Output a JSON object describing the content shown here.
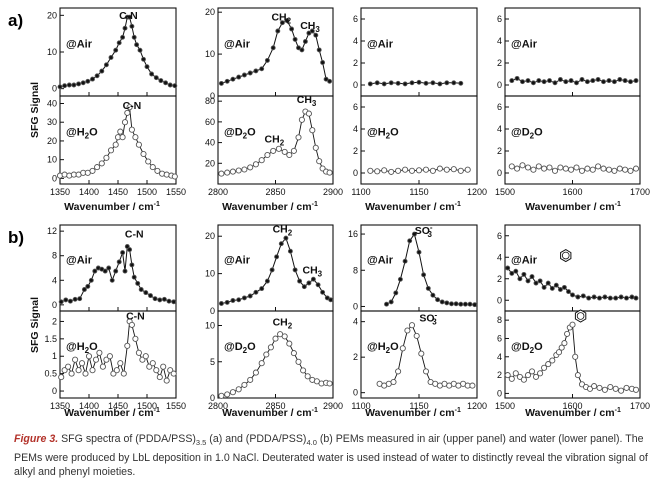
{
  "figure": {
    "panel_a_letter": "a)",
    "panel_b_letter": "b)",
    "ylabel": "SFG Signal",
    "xlabel_text": "Wavenumber / cm",
    "xlabel_sup": "-1"
  },
  "caption": {
    "fig_label": "Figure 3.",
    "text_1": " SFG spectra of (PDDA/PSS)",
    "sub_1": "3.5",
    "text_2": " (a) and (PDDA/PSS)",
    "sub_2": "4.0",
    "text_3": " (b) PEMs measured in air (upper panel) and water (lower panel). The PEMs were produced by LbL deposition in 1.0 NaCl. Deuterated water is used instead of water to distinctly reveal the vibration signal of alkyl and phenyl moieties."
  },
  "chart_data": [
    {
      "id": "a-air-CN",
      "type": "line",
      "env": "@Air",
      "marker": "filled",
      "xlim": [
        1350,
        1550
      ],
      "ylim": [
        -2,
        22
      ],
      "xticks": [
        "1350",
        "1400",
        "1450",
        "1500",
        "1550"
      ],
      "yticks": [
        0,
        10,
        20
      ],
      "peaks": [
        {
          "text": "C-N",
          "x": 1468,
          "y": 19
        }
      ],
      "x": [
        1350,
        1358,
        1366,
        1374,
        1382,
        1390,
        1398,
        1406,
        1414,
        1422,
        1430,
        1438,
        1446,
        1452,
        1458,
        1462,
        1466,
        1470,
        1474,
        1478,
        1482,
        1488,
        1494,
        1500,
        1508,
        1516,
        1524,
        1532,
        1540,
        1548
      ],
      "y": [
        0.5,
        0.8,
        1,
        1,
        1.3,
        1.6,
        2,
        2.6,
        3.5,
        4.8,
        6.5,
        8.5,
        10.5,
        12.5,
        14,
        16.5,
        19.5,
        19.5,
        17,
        14,
        12,
        10.5,
        8,
        6,
        4,
        3,
        2.2,
        1.6,
        1,
        0.8
      ]
    },
    {
      "id": "a-air-CH",
      "type": "line",
      "env": "@Air",
      "marker": "filled",
      "xlim": [
        2800,
        2900
      ],
      "ylim": [
        0,
        21
      ],
      "xticks": [
        "2800",
        "2850",
        "2900"
      ],
      "yticks": [
        0,
        10,
        20
      ],
      "peaks": [
        {
          "text": "CH",
          "sub": "2",
          "x": 2855,
          "y": 18
        },
        {
          "text": "CH",
          "sub": "3",
          "x": 2880,
          "y": 16
        }
      ],
      "x": [
        2803,
        2808,
        2813,
        2818,
        2823,
        2828,
        2833,
        2838,
        2843,
        2848,
        2852,
        2856,
        2860,
        2864,
        2867,
        2870,
        2873,
        2876,
        2879,
        2882,
        2885,
        2888,
        2891,
        2894,
        2897
      ],
      "y": [
        3,
        3.5,
        4,
        4.5,
        5,
        5.5,
        6,
        6.5,
        8.5,
        11.5,
        15.5,
        17.5,
        18,
        16,
        13.5,
        11.5,
        11,
        13,
        15,
        15.5,
        14.5,
        11,
        8,
        4,
        3.5
      ]
    },
    {
      "id": "a-air-SO3",
      "type": "line",
      "env": "@Air",
      "marker": "filled",
      "xlim": [
        1100,
        1200
      ],
      "ylim": [
        -1,
        7
      ],
      "xticks": [
        "1100",
        "1150",
        "1200"
      ],
      "yticks": [
        0,
        2,
        4,
        6
      ],
      "peaks": [],
      "x": [
        1108,
        1114,
        1120,
        1126,
        1132,
        1138,
        1144,
        1150,
        1156,
        1162,
        1168,
        1174,
        1180,
        1186
      ],
      "y": [
        0.1,
        0.2,
        0.1,
        0.2,
        0.15,
        0.1,
        0.2,
        0.25,
        0.15,
        0.2,
        0.1,
        0.2,
        0.2,
        0.15
      ]
    },
    {
      "id": "a-air-Ph",
      "type": "line",
      "env": "@Air",
      "marker": "filled",
      "xlim": [
        1500,
        1700
      ],
      "ylim": [
        -1,
        7
      ],
      "xticks": [
        "1500",
        "1600",
        "1700"
      ],
      "yticks": [
        0,
        2,
        4,
        6
      ],
      "peaks": [],
      "x": [
        1510,
        1518,
        1526,
        1534,
        1542,
        1550,
        1558,
        1566,
        1574,
        1582,
        1590,
        1598,
        1606,
        1614,
        1622,
        1630,
        1638,
        1646,
        1654,
        1662,
        1670,
        1678,
        1686,
        1694
      ],
      "y": [
        0.4,
        0.6,
        0.3,
        0.4,
        0.2,
        0.4,
        0.3,
        0.4,
        0.2,
        0.5,
        0.3,
        0.4,
        0.2,
        0.5,
        0.3,
        0.4,
        0.5,
        0.3,
        0.4,
        0.3,
        0.5,
        0.4,
        0.3,
        0.4
      ]
    },
    {
      "id": "a-water-CN",
      "type": "line",
      "env": "@H2O",
      "marker": "open",
      "xlim": [
        1350,
        1550
      ],
      "ylim": [
        -3,
        44
      ],
      "xticks": [
        "1350",
        "1400",
        "1450",
        "1500",
        "1550"
      ],
      "yticks": [
        0,
        10,
        20,
        30,
        40
      ],
      "peaks": [
        {
          "text": "C-N",
          "x": 1474,
          "y": 37
        }
      ],
      "x": [
        1350,
        1358,
        1366,
        1374,
        1382,
        1390,
        1398,
        1406,
        1414,
        1422,
        1430,
        1438,
        1446,
        1450,
        1454,
        1458,
        1462,
        1466,
        1470,
        1474,
        1480,
        1486,
        1494,
        1502,
        1510,
        1518,
        1526,
        1534,
        1542,
        1548
      ],
      "y": [
        1.5,
        2,
        1.5,
        2,
        2,
        3,
        3,
        4,
        6,
        8,
        11,
        15,
        18,
        22,
        25,
        22,
        30,
        35,
        38,
        26,
        22,
        18,
        13,
        9,
        6,
        4,
        2.5,
        2,
        1.5,
        1
      ]
    },
    {
      "id": "a-water-CH",
      "type": "line",
      "env": "@D2O",
      "marker": "open",
      "xlim": [
        2800,
        2900
      ],
      "ylim": [
        0,
        85
      ],
      "xticks": [
        "2800",
        "2850",
        "2900"
      ],
      "yticks": [
        20,
        40,
        60,
        80
      ],
      "peaks": [
        {
          "text": "CH",
          "sub": "2",
          "x": 2849,
          "y": 40
        },
        {
          "text": "CH",
          "sub": "3",
          "x": 2877,
          "y": 78
        }
      ],
      "x": [
        2803,
        2808,
        2813,
        2818,
        2823,
        2828,
        2833,
        2838,
        2843,
        2848,
        2853,
        2858,
        2862,
        2866,
        2870,
        2873,
        2876,
        2879,
        2882,
        2885,
        2888,
        2891,
        2894,
        2897
      ],
      "y": [
        10,
        11,
        12,
        13,
        14,
        16,
        19,
        23,
        28,
        32,
        34,
        31,
        28,
        32,
        45,
        62,
        70,
        68,
        52,
        35,
        22,
        15,
        12,
        11
      ]
    },
    {
      "id": "a-water-SO3",
      "type": "line",
      "env": "@H2O",
      "marker": "open",
      "xlim": [
        1100,
        1200
      ],
      "ylim": [
        -1,
        7
      ],
      "xticks": [
        "1100",
        "1150",
        "1200"
      ],
      "yticks": [
        0,
        2,
        4,
        6
      ],
      "peaks": [],
      "x": [
        1108,
        1114,
        1120,
        1126,
        1132,
        1138,
        1144,
        1150,
        1156,
        1162,
        1168,
        1174,
        1180,
        1186,
        1192
      ],
      "y": [
        0.2,
        0.15,
        0.25,
        0.1,
        0.2,
        0.3,
        0.2,
        0.25,
        0.3,
        0.2,
        0.4,
        0.3,
        0.35,
        0.2,
        0.3
      ]
    },
    {
      "id": "a-water-Ph",
      "type": "line",
      "env": "@D2O",
      "marker": "open",
      "xlim": [
        1500,
        1700
      ],
      "ylim": [
        -1,
        7
      ],
      "xticks": [
        "1500",
        "1600",
        "1700"
      ],
      "yticks": [
        0,
        2,
        4,
        6
      ],
      "peaks": [],
      "x": [
        1510,
        1518,
        1526,
        1534,
        1542,
        1550,
        1558,
        1566,
        1574,
        1582,
        1590,
        1598,
        1606,
        1614,
        1622,
        1630,
        1638,
        1646,
        1654,
        1662,
        1670,
        1678,
        1686,
        1694
      ],
      "y": [
        0.6,
        0.4,
        0.7,
        0.5,
        0.3,
        0.6,
        0.4,
        0.5,
        0.2,
        0.5,
        0.4,
        0.3,
        0.5,
        0.2,
        0.4,
        0.3,
        0.6,
        0.4,
        0.3,
        0.2,
        0.4,
        0.3,
        0.2,
        0.4
      ]
    },
    {
      "id": "b-air-CN",
      "type": "line",
      "env": "@Air",
      "marker": "filled",
      "xlim": [
        1350,
        1550
      ],
      "ylim": [
        -1,
        13
      ],
      "xticks": [
        "1350",
        "1400",
        "1450",
        "1500",
        "1550"
      ],
      "yticks": [
        0,
        4,
        8,
        12
      ],
      "peaks": [
        {
          "text": "C-N",
          "x": 1478,
          "y": 11
        }
      ],
      "x": [
        1352,
        1360,
        1368,
        1376,
        1384,
        1392,
        1398,
        1404,
        1410,
        1416,
        1422,
        1428,
        1434,
        1440,
        1446,
        1452,
        1458,
        1462,
        1466,
        1470,
        1474,
        1478,
        1484,
        1490,
        1498,
        1506,
        1514,
        1522,
        1530,
        1538,
        1546
      ],
      "y": [
        0.5,
        0.8,
        0.6,
        0.9,
        1,
        2.5,
        3,
        4,
        5.5,
        6,
        5.8,
        5.5,
        6,
        4,
        5.5,
        7,
        8.5,
        5.5,
        9.5,
        9,
        6.5,
        4.5,
        3.5,
        2.5,
        2,
        1.5,
        1,
        0.8,
        0.9,
        0.6,
        0.5
      ]
    },
    {
      "id": "b-air-CH",
      "type": "line",
      "env": "@Air",
      "marker": "filled",
      "xlim": [
        2800,
        2900
      ],
      "ylim": [
        0,
        23
      ],
      "xticks": [
        "2800",
        "2850",
        "2900"
      ],
      "yticks": [
        0,
        10,
        20
      ],
      "peaks": [
        {
          "text": "CH",
          "sub": "2",
          "x": 2856,
          "y": 21
        },
        {
          "text": "CH",
          "sub": "3",
          "x": 2882,
          "y": 10
        }
      ],
      "x": [
        2803,
        2808,
        2813,
        2818,
        2823,
        2828,
        2833,
        2838,
        2843,
        2847,
        2851,
        2855,
        2859,
        2863,
        2867,
        2871,
        2875,
        2879,
        2883,
        2887,
        2891,
        2895,
        2898
      ],
      "y": [
        2,
        2.3,
        2.8,
        3,
        3.5,
        4,
        5,
        6,
        8,
        11,
        14.5,
        18,
        19.5,
        16,
        11,
        8,
        6.5,
        7.5,
        8.5,
        7,
        5,
        3.5,
        3
      ]
    },
    {
      "id": "b-air-SO3",
      "type": "line",
      "env": "@Air",
      "marker": "filled",
      "xlim": [
        1100,
        1200
      ],
      "ylim": [
        -1,
        18
      ],
      "xticks": [
        "1100",
        "1150",
        "1200"
      ],
      "yticks": [
        0,
        8,
        16
      ],
      "peaks": [
        {
          "text": "SO",
          "sub": "3",
          "sup": "-",
          "x": 1154,
          "y": 16
        }
      ],
      "x": [
        1122,
        1126,
        1130,
        1134,
        1138,
        1142,
        1146,
        1150,
        1154,
        1158,
        1162,
        1166,
        1170,
        1174,
        1178,
        1182,
        1186,
        1190,
        1194,
        1198
      ],
      "y": [
        0.5,
        1,
        3,
        6,
        10,
        14.5,
        16,
        12,
        7,
        4,
        2.5,
        1.5,
        1,
        0.8,
        0.6,
        0.6,
        0.5,
        0.5,
        0.5,
        0.4
      ]
    },
    {
      "id": "b-air-Ph",
      "type": "line",
      "env": "@Air",
      "marker": "filled",
      "xlim": [
        1500,
        1700
      ],
      "ylim": [
        -1,
        7
      ],
      "xticks": [
        "1500",
        "1600",
        "1700"
      ],
      "yticks": [
        0,
        2,
        4,
        6
      ],
      "peaks": [
        {
          "icon": "benzene-ring",
          "x": 1590,
          "y": 3.6
        }
      ],
      "x": [
        1504,
        1510,
        1516,
        1522,
        1528,
        1534,
        1540,
        1546,
        1552,
        1558,
        1564,
        1570,
        1576,
        1582,
        1588,
        1594,
        1600,
        1608,
        1616,
        1624,
        1632,
        1640,
        1648,
        1656,
        1664,
        1672,
        1680,
        1688,
        1694
      ],
      "y": [
        3,
        2.5,
        2.7,
        2,
        2.4,
        1.8,
        2.2,
        1.6,
        1.8,
        1.2,
        1.6,
        1.1,
        1.4,
        1,
        1.2,
        0.8,
        0.5,
        0.3,
        0.4,
        0.2,
        0.3,
        0.2,
        0.3,
        0.2,
        0.2,
        0.3,
        0.2,
        0.3,
        0.2
      ]
    },
    {
      "id": "b-water-CN",
      "type": "line",
      "env": "@H2O",
      "marker": "open",
      "xlim": [
        1350,
        1550
      ],
      "ylim": [
        -0.2,
        2.3
      ],
      "xticks": [
        "1350",
        "1400",
        "1450",
        "1500",
        "1550"
      ],
      "yticks": [
        0,
        0.5,
        1,
        1.5,
        2
      ],
      "peaks": [
        {
          "text": "C-N",
          "x": 1480,
          "y": 2.05
        }
      ],
      "x": [
        1352,
        1358,
        1364,
        1370,
        1376,
        1382,
        1388,
        1394,
        1400,
        1406,
        1412,
        1418,
        1424,
        1430,
        1436,
        1442,
        1448,
        1454,
        1460,
        1466,
        1470,
        1474,
        1480,
        1486,
        1492,
        1498,
        1504,
        1510,
        1516,
        1522,
        1528,
        1534,
        1540,
        1546
      ],
      "y": [
        0.4,
        0.6,
        0.7,
        0.5,
        0.9,
        0.6,
        0.8,
        0.5,
        1,
        0.6,
        0.9,
        1.1,
        0.7,
        0.9,
        1,
        0.5,
        0.6,
        0.8,
        0.5,
        1.3,
        2,
        1.9,
        1.5,
        1.1,
        0.9,
        1,
        0.7,
        0.8,
        0.6,
        0.4,
        0.7,
        0.3,
        0.6,
        0.5
      ]
    },
    {
      "id": "b-water-CH",
      "type": "line",
      "env": "@D2O",
      "marker": "open",
      "xlim": [
        2800,
        2900
      ],
      "ylim": [
        0,
        12
      ],
      "xticks": [
        "2800",
        "2850",
        "2900"
      ],
      "yticks": [
        0,
        5,
        10
      ],
      "peaks": [
        {
          "text": "CH",
          "sub": "2",
          "x": 2856,
          "y": 10
        }
      ],
      "x": [
        2803,
        2808,
        2813,
        2818,
        2823,
        2828,
        2833,
        2838,
        2842,
        2846,
        2850,
        2854,
        2858,
        2862,
        2866,
        2870,
        2874,
        2878,
        2882,
        2886,
        2890,
        2894,
        2897
      ],
      "y": [
        0.3,
        0.5,
        0.8,
        1.2,
        1.8,
        2.5,
        3.5,
        4.8,
        6,
        7,
        8.2,
        8.8,
        8.5,
        7.5,
        6.2,
        5,
        3.8,
        3,
        2.5,
        2.3,
        2,
        2.1,
        2
      ]
    },
    {
      "id": "b-water-SO3",
      "type": "line",
      "env": "@H2O",
      "marker": "open",
      "xlim": [
        1100,
        1200
      ],
      "ylim": [
        -0.3,
        4.6
      ],
      "xticks": [
        "1100",
        "1150",
        "1200"
      ],
      "yticks": [
        0,
        2,
        4
      ],
      "peaks": [
        {
          "text": "SO",
          "sub": "3",
          "sup": "-",
          "x": 1158,
          "y": 4
        }
      ],
      "x": [
        1116,
        1120,
        1124,
        1128,
        1132,
        1136,
        1140,
        1144,
        1148,
        1152,
        1156,
        1160,
        1164,
        1168,
        1172,
        1176,
        1180,
        1184,
        1188,
        1192,
        1196
      ],
      "y": [
        0.5,
        0.4,
        0.5,
        0.6,
        1.2,
        2.5,
        3.5,
        3.8,
        3.2,
        2.2,
        1.2,
        0.6,
        0.5,
        0.4,
        0.5,
        0.4,
        0.5,
        0.4,
        0.5,
        0.4,
        0.4
      ]
    },
    {
      "id": "b-water-Ph",
      "type": "line",
      "env": "@D2O",
      "marker": "open",
      "xlim": [
        1500,
        1700
      ],
      "ylim": [
        -0.5,
        9
      ],
      "xticks": [
        "1500",
        "1600",
        "1700"
      ],
      "yticks": [
        0,
        2,
        4,
        6,
        8
      ],
      "peaks": [
        {
          "icon": "benzene-ring",
          "x": 1612,
          "y": 7.8
        }
      ],
      "x": [
        1504,
        1510,
        1516,
        1522,
        1528,
        1534,
        1540,
        1546,
        1552,
        1558,
        1564,
        1570,
        1576,
        1580,
        1584,
        1588,
        1592,
        1596,
        1600,
        1604,
        1608,
        1614,
        1620,
        1626,
        1632,
        1640,
        1648,
        1656,
        1664,
        1672,
        1680,
        1688,
        1694
      ],
      "y": [
        2,
        1.6,
        2.2,
        1.8,
        1.5,
        2,
        2.4,
        1.8,
        2.2,
        2.8,
        3.2,
        3.6,
        4.2,
        4.5,
        5,
        5.5,
        6.5,
        7.2,
        7.5,
        4,
        2,
        1,
        0.7,
        0.5,
        0.8,
        0.6,
        0.4,
        0.7,
        0.5,
        0.3,
        0.6,
        0.5,
        0.4
      ]
    }
  ]
}
